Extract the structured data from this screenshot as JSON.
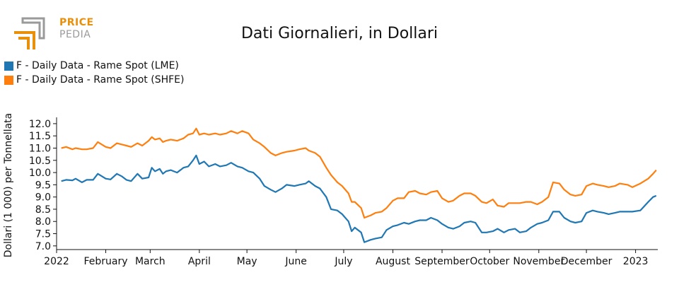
{
  "logo": {
    "line1": "PRICE",
    "line2": "PEDIA"
  },
  "colors": {
    "lme": "#1f77b4",
    "shfe": "#ff7f0e",
    "logo_orange": "#e8900c",
    "logo_gray": "#9a9a9a"
  },
  "chart_data": {
    "type": "line",
    "title": "Dati Giornalieri, in Dollari",
    "ylabel": "Dollari (1 000) per Tonnellata",
    "xlabel": "",
    "ylim": [
      6.85,
      12.2
    ],
    "yticks": [
      "7.0",
      "7.5",
      "8.0",
      "8.5",
      "9.0",
      "9.5",
      "10.0",
      "10.5",
      "11.0",
      "11.5",
      "12.0"
    ],
    "xlim": [
      "2022-01-01",
      "2023-01-15"
    ],
    "xticks": [
      {
        "date": "2022-01-01",
        "label": "2022"
      },
      {
        "date": "2022-02-01",
        "label": "February"
      },
      {
        "date": "2022-03-01",
        "label": "March"
      },
      {
        "date": "2022-04-01",
        "label": "April"
      },
      {
        "date": "2022-05-01",
        "label": "May"
      },
      {
        "date": "2022-06-01",
        "label": "June"
      },
      {
        "date": "2022-07-01",
        "label": "July"
      },
      {
        "date": "2022-08-01",
        "label": "August"
      },
      {
        "date": "2022-09-01",
        "label": "September"
      },
      {
        "date": "2022-10-01",
        "label": "October"
      },
      {
        "date": "2022-11-01",
        "label": "November"
      },
      {
        "date": "2022-12-01",
        "label": "December"
      },
      {
        "date": "2023-01-01",
        "label": "2023"
      }
    ],
    "legend_position": "top-left",
    "grid": false,
    "series": [
      {
        "name": "F - Daily Data - Rame Spot (LME)",
        "points": [
          [
            "2022-01-04",
            9.65
          ],
          [
            "2022-01-07",
            9.7
          ],
          [
            "2022-01-11",
            9.68
          ],
          [
            "2022-01-13",
            9.75
          ],
          [
            "2022-01-17",
            9.6
          ],
          [
            "2022-01-20",
            9.7
          ],
          [
            "2022-01-24",
            9.7
          ],
          [
            "2022-01-27",
            9.95
          ],
          [
            "2022-02-01",
            9.75
          ],
          [
            "2022-02-04",
            9.72
          ],
          [
            "2022-02-08",
            9.95
          ],
          [
            "2022-02-11",
            9.85
          ],
          [
            "2022-02-14",
            9.7
          ],
          [
            "2022-02-17",
            9.65
          ],
          [
            "2022-02-21",
            9.95
          ],
          [
            "2022-02-24",
            9.75
          ],
          [
            "2022-02-28",
            9.8
          ],
          [
            "2022-03-02",
            10.2
          ],
          [
            "2022-03-04",
            10.05
          ],
          [
            "2022-03-07",
            10.15
          ],
          [
            "2022-03-09",
            9.95
          ],
          [
            "2022-03-11",
            10.05
          ],
          [
            "2022-03-14",
            10.1
          ],
          [
            "2022-03-18",
            10.0
          ],
          [
            "2022-03-22",
            10.2
          ],
          [
            "2022-03-25",
            10.25
          ],
          [
            "2022-03-28",
            10.5
          ],
          [
            "2022-03-30",
            10.7
          ],
          [
            "2022-04-01",
            10.35
          ],
          [
            "2022-04-04",
            10.45
          ],
          [
            "2022-04-07",
            10.25
          ],
          [
            "2022-04-11",
            10.35
          ],
          [
            "2022-04-14",
            10.25
          ],
          [
            "2022-04-18",
            10.3
          ],
          [
            "2022-04-21",
            10.4
          ],
          [
            "2022-04-25",
            10.25
          ],
          [
            "2022-04-28",
            10.2
          ],
          [
            "2022-05-02",
            10.05
          ],
          [
            "2022-05-05",
            10.0
          ],
          [
            "2022-05-09",
            9.75
          ],
          [
            "2022-05-12",
            9.45
          ],
          [
            "2022-05-16",
            9.3
          ],
          [
            "2022-05-19",
            9.2
          ],
          [
            "2022-05-23",
            9.35
          ],
          [
            "2022-05-26",
            9.5
          ],
          [
            "2022-05-31",
            9.45
          ],
          [
            "2022-06-03",
            9.5
          ],
          [
            "2022-06-07",
            9.55
          ],
          [
            "2022-06-09",
            9.65
          ],
          [
            "2022-06-13",
            9.45
          ],
          [
            "2022-06-16",
            9.35
          ],
          [
            "2022-06-20",
            9.0
          ],
          [
            "2022-06-23",
            8.5
          ],
          [
            "2022-06-27",
            8.45
          ],
          [
            "2022-06-30",
            8.3
          ],
          [
            "2022-07-04",
            8.0
          ],
          [
            "2022-07-06",
            7.6
          ],
          [
            "2022-07-08",
            7.75
          ],
          [
            "2022-07-12",
            7.55
          ],
          [
            "2022-07-14",
            7.15
          ],
          [
            "2022-07-18",
            7.25
          ],
          [
            "2022-07-21",
            7.3
          ],
          [
            "2022-07-25",
            7.35
          ],
          [
            "2022-07-28",
            7.65
          ],
          [
            "2022-08-01",
            7.8
          ],
          [
            "2022-08-04",
            7.85
          ],
          [
            "2022-08-08",
            7.95
          ],
          [
            "2022-08-11",
            7.9
          ],
          [
            "2022-08-15",
            8.0
          ],
          [
            "2022-08-18",
            8.05
          ],
          [
            "2022-08-22",
            8.05
          ],
          [
            "2022-08-25",
            8.15
          ],
          [
            "2022-08-29",
            8.05
          ],
          [
            "2022-09-01",
            7.9
          ],
          [
            "2022-09-05",
            7.75
          ],
          [
            "2022-09-08",
            7.7
          ],
          [
            "2022-09-12",
            7.8
          ],
          [
            "2022-09-15",
            7.95
          ],
          [
            "2022-09-19",
            8.0
          ],
          [
            "2022-09-22",
            7.95
          ],
          [
            "2022-09-26",
            7.55
          ],
          [
            "2022-09-29",
            7.55
          ],
          [
            "2022-10-03",
            7.6
          ],
          [
            "2022-10-06",
            7.7
          ],
          [
            "2022-10-10",
            7.55
          ],
          [
            "2022-10-13",
            7.65
          ],
          [
            "2022-10-17",
            7.7
          ],
          [
            "2022-10-20",
            7.55
          ],
          [
            "2022-10-24",
            7.6
          ],
          [
            "2022-10-27",
            7.75
          ],
          [
            "2022-10-31",
            7.9
          ],
          [
            "2022-11-03",
            7.95
          ],
          [
            "2022-11-07",
            8.05
          ],
          [
            "2022-11-10",
            8.4
          ],
          [
            "2022-11-14",
            8.4
          ],
          [
            "2022-11-17",
            8.15
          ],
          [
            "2022-11-21",
            8.0
          ],
          [
            "2022-11-24",
            7.95
          ],
          [
            "2022-11-28",
            8.0
          ],
          [
            "2022-12-01",
            8.35
          ],
          [
            "2022-12-05",
            8.45
          ],
          [
            "2022-12-08",
            8.4
          ],
          [
            "2022-12-12",
            8.35
          ],
          [
            "2022-12-15",
            8.3
          ],
          [
            "2022-12-19",
            8.35
          ],
          [
            "2022-12-22",
            8.4
          ],
          [
            "2022-12-27",
            8.4
          ],
          [
            "2022-12-30",
            8.4
          ],
          [
            "2023-01-04",
            8.45
          ],
          [
            "2023-01-09",
            8.8
          ],
          [
            "2023-01-12",
            9.0
          ],
          [
            "2023-01-14",
            9.05
          ]
        ]
      },
      {
        "name": "F - Daily Data - Rame Spot (SHFE)",
        "points": [
          [
            "2022-01-04",
            11.0
          ],
          [
            "2022-01-07",
            11.05
          ],
          [
            "2022-01-11",
            10.95
          ],
          [
            "2022-01-13",
            11.0
          ],
          [
            "2022-01-17",
            10.95
          ],
          [
            "2022-01-20",
            10.95
          ],
          [
            "2022-01-24",
            11.0
          ],
          [
            "2022-01-27",
            11.25
          ],
          [
            "2022-02-01",
            11.05
          ],
          [
            "2022-02-04",
            11.0
          ],
          [
            "2022-02-08",
            11.2
          ],
          [
            "2022-02-11",
            11.15
          ],
          [
            "2022-02-14",
            11.1
          ],
          [
            "2022-02-17",
            11.05
          ],
          [
            "2022-02-21",
            11.2
          ],
          [
            "2022-02-24",
            11.1
          ],
          [
            "2022-02-28",
            11.3
          ],
          [
            "2022-03-02",
            11.45
          ],
          [
            "2022-03-04",
            11.35
          ],
          [
            "2022-03-07",
            11.4
          ],
          [
            "2022-03-09",
            11.25
          ],
          [
            "2022-03-11",
            11.3
          ],
          [
            "2022-03-14",
            11.35
          ],
          [
            "2022-03-18",
            11.3
          ],
          [
            "2022-03-22",
            11.4
          ],
          [
            "2022-03-25",
            11.55
          ],
          [
            "2022-03-28",
            11.6
          ],
          [
            "2022-03-30",
            11.8
          ],
          [
            "2022-04-01",
            11.55
          ],
          [
            "2022-04-04",
            11.6
          ],
          [
            "2022-04-07",
            11.55
          ],
          [
            "2022-04-11",
            11.6
          ],
          [
            "2022-04-14",
            11.55
          ],
          [
            "2022-04-18",
            11.6
          ],
          [
            "2022-04-21",
            11.7
          ],
          [
            "2022-04-25",
            11.6
          ],
          [
            "2022-04-28",
            11.7
          ],
          [
            "2022-05-02",
            11.6
          ],
          [
            "2022-05-05",
            11.35
          ],
          [
            "2022-05-09",
            11.2
          ],
          [
            "2022-05-12",
            11.05
          ],
          [
            "2022-05-16",
            10.8
          ],
          [
            "2022-05-19",
            10.7
          ],
          [
            "2022-05-23",
            10.8
          ],
          [
            "2022-05-26",
            10.85
          ],
          [
            "2022-05-31",
            10.9
          ],
          [
            "2022-06-03",
            10.95
          ],
          [
            "2022-06-07",
            11.0
          ],
          [
            "2022-06-09",
            10.9
          ],
          [
            "2022-06-13",
            10.8
          ],
          [
            "2022-06-16",
            10.65
          ],
          [
            "2022-06-20",
            10.2
          ],
          [
            "2022-06-23",
            9.9
          ],
          [
            "2022-06-27",
            9.6
          ],
          [
            "2022-06-30",
            9.45
          ],
          [
            "2022-07-04",
            9.15
          ],
          [
            "2022-07-06",
            8.8
          ],
          [
            "2022-07-08",
            8.8
          ],
          [
            "2022-07-12",
            8.55
          ],
          [
            "2022-07-14",
            8.15
          ],
          [
            "2022-07-18",
            8.25
          ],
          [
            "2022-07-21",
            8.35
          ],
          [
            "2022-07-25",
            8.4
          ],
          [
            "2022-07-28",
            8.55
          ],
          [
            "2022-08-01",
            8.85
          ],
          [
            "2022-08-04",
            8.95
          ],
          [
            "2022-08-08",
            8.95
          ],
          [
            "2022-08-11",
            9.2
          ],
          [
            "2022-08-15",
            9.25
          ],
          [
            "2022-08-18",
            9.15
          ],
          [
            "2022-08-22",
            9.1
          ],
          [
            "2022-08-25",
            9.2
          ],
          [
            "2022-08-29",
            9.25
          ],
          [
            "2022-09-01",
            8.95
          ],
          [
            "2022-09-05",
            8.8
          ],
          [
            "2022-09-08",
            8.85
          ],
          [
            "2022-09-12",
            9.05
          ],
          [
            "2022-09-15",
            9.15
          ],
          [
            "2022-09-19",
            9.15
          ],
          [
            "2022-09-22",
            9.05
          ],
          [
            "2022-09-26",
            8.8
          ],
          [
            "2022-09-29",
            8.75
          ],
          [
            "2022-10-03",
            8.9
          ],
          [
            "2022-10-06",
            8.65
          ],
          [
            "2022-10-10",
            8.6
          ],
          [
            "2022-10-13",
            8.75
          ],
          [
            "2022-10-17",
            8.75
          ],
          [
            "2022-10-20",
            8.75
          ],
          [
            "2022-10-24",
            8.8
          ],
          [
            "2022-10-27",
            8.8
          ],
          [
            "2022-10-31",
            8.7
          ],
          [
            "2022-11-03",
            8.8
          ],
          [
            "2022-11-07",
            9.0
          ],
          [
            "2022-11-10",
            9.6
          ],
          [
            "2022-11-14",
            9.55
          ],
          [
            "2022-11-17",
            9.3
          ],
          [
            "2022-11-21",
            9.1
          ],
          [
            "2022-11-24",
            9.05
          ],
          [
            "2022-11-28",
            9.1
          ],
          [
            "2022-12-01",
            9.45
          ],
          [
            "2022-12-05",
            9.55
          ],
          [
            "2022-12-08",
            9.5
          ],
          [
            "2022-12-12",
            9.45
          ],
          [
            "2022-12-15",
            9.4
          ],
          [
            "2022-12-19",
            9.45
          ],
          [
            "2022-12-22",
            9.55
          ],
          [
            "2022-12-27",
            9.5
          ],
          [
            "2022-12-30",
            9.4
          ],
          [
            "2023-01-04",
            9.55
          ],
          [
            "2023-01-09",
            9.75
          ],
          [
            "2023-01-12",
            9.95
          ],
          [
            "2023-01-14",
            10.1
          ]
        ]
      }
    ]
  }
}
